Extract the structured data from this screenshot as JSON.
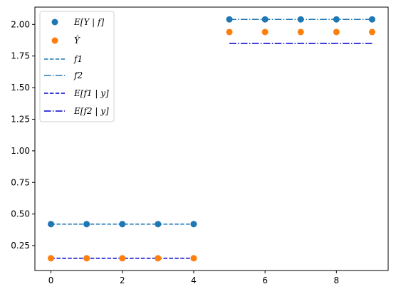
{
  "chart_data": {
    "type": "scatter",
    "title": "",
    "xlabel": "",
    "ylabel": "",
    "xlim": [
      -0.45,
      9.45
    ],
    "ylim": [
      0.053,
      2.137
    ],
    "grid": false,
    "legend_position": "upper-left",
    "x_ticks": [
      0,
      2,
      4,
      6,
      8
    ],
    "x_tick_labels": [
      "0",
      "2",
      "4",
      "6",
      "8"
    ],
    "y_ticks": [
      0.25,
      0.5,
      0.75,
      1.0,
      1.25,
      1.5,
      1.75,
      2.0
    ],
    "y_tick_labels": [
      "0.25",
      "0.50",
      "0.75",
      "1.00",
      "1.25",
      "1.50",
      "1.75",
      "2.00"
    ],
    "x": [
      0,
      1,
      2,
      3,
      4,
      5,
      6,
      7,
      8,
      9
    ],
    "series": [
      {
        "name": "E[Y | f]",
        "kind": "scatter",
        "color": "#1f77b4",
        "values": [
          0.42,
          0.42,
          0.42,
          0.42,
          0.42,
          2.04,
          2.04,
          2.04,
          2.04,
          2.04
        ]
      },
      {
        "name": "Ŷ",
        "kind": "scatter",
        "color": "#ff7f0e",
        "values": [
          0.15,
          0.15,
          0.15,
          0.15,
          0.15,
          1.94,
          1.94,
          1.94,
          1.94,
          1.94
        ]
      },
      {
        "name": "f1",
        "kind": "line",
        "style": "dashed",
        "color": "#1f77b4",
        "x": [
          0,
          4
        ],
        "values": [
          0.42,
          0.42
        ]
      },
      {
        "name": "f2",
        "kind": "line",
        "style": "dashdot",
        "color": "#1f77b4",
        "x": [
          5,
          9
        ],
        "values": [
          2.04,
          2.04
        ]
      },
      {
        "name": "E[f1 | y]",
        "kind": "line",
        "style": "dashed",
        "color": "#0000cc",
        "x": [
          0,
          4
        ],
        "values": [
          0.15,
          0.15
        ]
      },
      {
        "name": "E[f2 | y]",
        "kind": "line",
        "style": "dashdot",
        "color": "#0000cc",
        "x": [
          5,
          9
        ],
        "values": [
          1.85,
          1.85
        ]
      }
    ]
  }
}
